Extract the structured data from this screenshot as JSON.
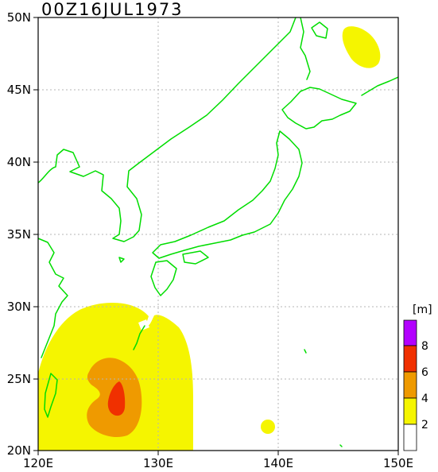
{
  "map": {
    "title": "00Z16JUL1973",
    "lon_labels": [
      "120E",
      "130E",
      "140E",
      "150E"
    ],
    "lat_labels": [
      "50N",
      "45N",
      "40N",
      "35N",
      "30N",
      "25N",
      "20N"
    ],
    "lon_range": [
      120,
      150
    ],
    "lat_range": [
      20,
      50
    ],
    "grid": true,
    "coastline_color": "#00dd00"
  },
  "legend": {
    "unit": "[m]",
    "tick_labels": [
      "8",
      "6",
      "4",
      "2"
    ],
    "levels": [
      {
        "min": 0,
        "max": 2,
        "color": "#ffffff"
      },
      {
        "min": 2,
        "max": 4,
        "color": "#f5f500"
      },
      {
        "min": 4,
        "max": 6,
        "color": "#ef9a00"
      },
      {
        "min": 6,
        "max": 8,
        "color": "#f03000"
      },
      {
        "min": 8,
        "max": 10,
        "color": "#b300ff"
      }
    ]
  }
}
